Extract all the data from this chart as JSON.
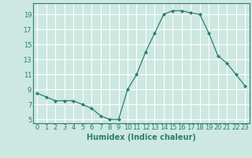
{
  "x": [
    0,
    1,
    2,
    3,
    4,
    5,
    6,
    7,
    8,
    9,
    10,
    11,
    12,
    13,
    14,
    15,
    16,
    17,
    18,
    19,
    20,
    21,
    22,
    23
  ],
  "y": [
    8.5,
    8.0,
    7.5,
    7.5,
    7.5,
    7.0,
    6.5,
    5.5,
    5.0,
    5.0,
    9.0,
    11.0,
    14.0,
    16.5,
    19.0,
    19.5,
    19.5,
    19.2,
    19.0,
    16.5,
    13.5,
    12.5,
    11.0,
    9.5
  ],
  "line_color": "#2e7d6e",
  "marker": "D",
  "marker_size": 2,
  "bg_color": "#cce8e0",
  "grid_color": "#ffffff",
  "xlabel": "Humidex (Indice chaleur)",
  "xlim": [
    -0.5,
    23.5
  ],
  "ylim": [
    4.5,
    20.5
  ],
  "yticks": [
    5,
    7,
    9,
    11,
    13,
    15,
    17,
    19
  ],
  "xticks": [
    0,
    1,
    2,
    3,
    4,
    5,
    6,
    7,
    8,
    9,
    10,
    11,
    12,
    13,
    14,
    15,
    16,
    17,
    18,
    19,
    20,
    21,
    22,
    23
  ],
  "tick_fontsize": 6,
  "xlabel_fontsize": 7
}
